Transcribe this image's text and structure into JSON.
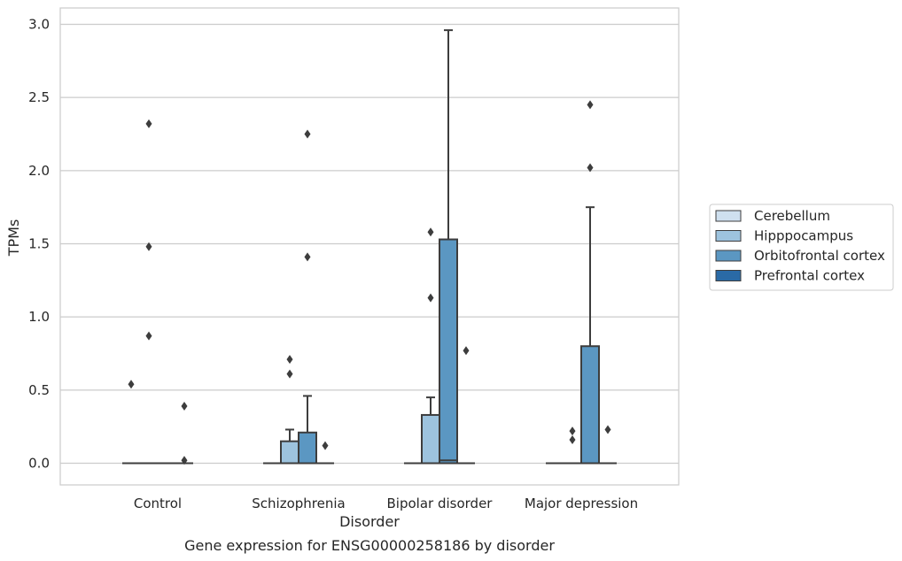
{
  "caption": "Gene expression for ENSG00000258186 by disorder",
  "chart_data": {
    "type": "box",
    "xlabel": "Disorder",
    "ylabel": "TPMs",
    "ylim": [
      -0.15,
      3.12
    ],
    "yticks": [
      0.0,
      0.5,
      1.0,
      1.5,
      2.0,
      2.5,
      3.0
    ],
    "ytick_labels": [
      "0.0",
      "0.5",
      "1.0",
      "1.5",
      "2.0",
      "2.5",
      "3.0"
    ],
    "grid": "horizontal",
    "legend_position": "right",
    "categories": [
      "Control",
      "Schizophrenia",
      "Bipolar disorder",
      "Major depression"
    ],
    "series": [
      {
        "name": "Cerebellum",
        "color": "#cfe0ef",
        "boxes": [
          {
            "category": "Control",
            "q1": 0,
            "median": 0,
            "q3": 0,
            "whislo": 0,
            "whishi": 0,
            "fliers": [
              0.54
            ]
          },
          {
            "category": "Schizophrenia",
            "q1": 0,
            "median": 0,
            "q3": 0,
            "whislo": 0,
            "whishi": 0,
            "fliers": []
          },
          {
            "category": "Bipolar disorder",
            "q1": 0,
            "median": 0,
            "q3": 0,
            "whislo": 0,
            "whishi": 0,
            "fliers": []
          },
          {
            "category": "Major depression",
            "q1": 0,
            "median": 0,
            "q3": 0,
            "whislo": 0,
            "whishi": 0,
            "fliers": []
          }
        ]
      },
      {
        "name": "Hipppocampus",
        "color": "#9dc3de",
        "boxes": [
          {
            "category": "Control",
            "q1": 0,
            "median": 0,
            "q3": 0,
            "whislo": 0,
            "whishi": 0,
            "fliers": [
              0.87,
              1.48,
              2.32
            ]
          },
          {
            "category": "Schizophrenia",
            "q1": 0,
            "median": 0,
            "q3": 0.15,
            "whislo": 0,
            "whishi": 0.23,
            "fliers": [
              0.61,
              0.71
            ]
          },
          {
            "category": "Bipolar disorder",
            "q1": 0,
            "median": 0,
            "q3": 0.33,
            "whislo": 0,
            "whishi": 0.45,
            "fliers": [
              1.13,
              1.58
            ]
          },
          {
            "category": "Major depression",
            "q1": 0,
            "median": 0,
            "q3": 0,
            "whislo": 0,
            "whishi": 0,
            "fliers": [
              0.16,
              0.22
            ]
          }
        ]
      },
      {
        "name": "Orbitofrontal cortex",
        "color": "#5b97c2",
        "boxes": [
          {
            "category": "Control",
            "q1": 0,
            "median": 0,
            "q3": 0,
            "whislo": 0,
            "whishi": 0,
            "fliers": []
          },
          {
            "category": "Schizophrenia",
            "q1": 0,
            "median": 0,
            "q3": 0.21,
            "whislo": 0,
            "whishi": 0.46,
            "fliers": [
              1.41,
              2.25
            ]
          },
          {
            "category": "Bipolar disorder",
            "q1": 0,
            "median": 0.02,
            "q3": 1.53,
            "whislo": 0,
            "whishi": 2.96,
            "fliers": []
          },
          {
            "category": "Major depression",
            "q1": 0,
            "median": 0,
            "q3": 0.8,
            "whislo": 0,
            "whishi": 1.75,
            "fliers": [
              2.02,
              2.45
            ]
          }
        ]
      },
      {
        "name": "Prefrontal cortex",
        "color": "#2a6aa6",
        "boxes": [
          {
            "category": "Control",
            "q1": 0,
            "median": 0,
            "q3": 0,
            "whislo": 0,
            "whishi": 0,
            "fliers": [
              0.02,
              0.39
            ]
          },
          {
            "category": "Schizophrenia",
            "q1": 0,
            "median": 0,
            "q3": 0,
            "whislo": 0,
            "whishi": 0,
            "fliers": [
              0.12
            ]
          },
          {
            "category": "Bipolar disorder",
            "q1": 0,
            "median": 0,
            "q3": 0,
            "whislo": 0,
            "whishi": 0,
            "fliers": [
              0.77
            ]
          },
          {
            "category": "Major depression",
            "q1": 0,
            "median": 0,
            "q3": 0,
            "whislo": 0,
            "whishi": 0,
            "fliers": [
              0.23
            ]
          }
        ]
      }
    ]
  }
}
